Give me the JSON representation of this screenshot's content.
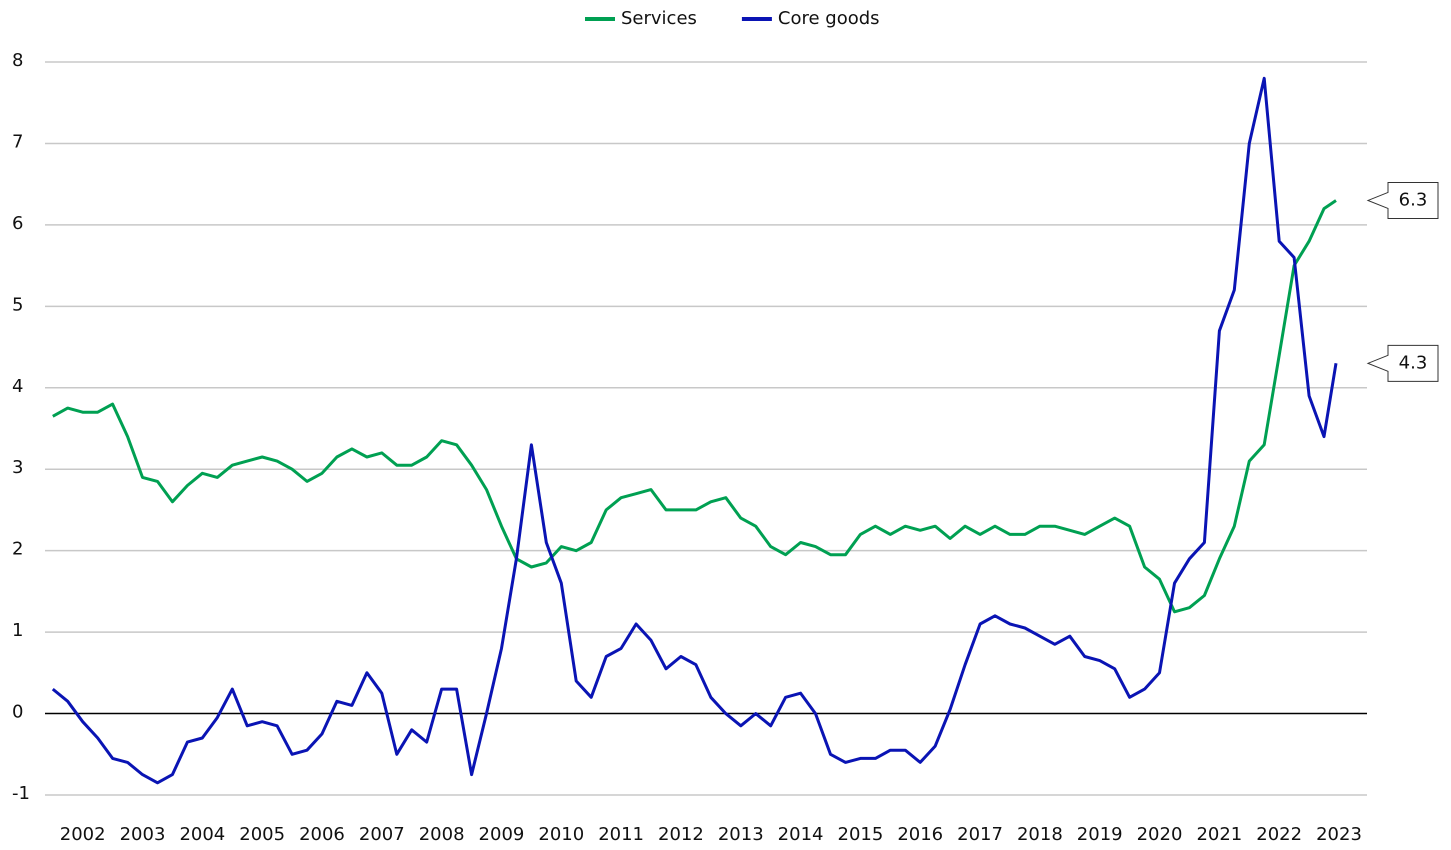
{
  "chart_data": {
    "type": "line",
    "x": [
      2001.5,
      2001.75,
      2002,
      2002.25,
      2002.5,
      2002.75,
      2003,
      2003.25,
      2003.5,
      2003.75,
      2004,
      2004.25,
      2004.5,
      2004.75,
      2005,
      2005.25,
      2005.5,
      2005.75,
      2006,
      2006.25,
      2006.5,
      2006.75,
      2007,
      2007.25,
      2007.5,
      2007.75,
      2008,
      2008.25,
      2008.5,
      2008.75,
      2009,
      2009.25,
      2009.5,
      2009.75,
      2010,
      2010.25,
      2010.5,
      2010.75,
      2011,
      2011.25,
      2011.5,
      2011.75,
      2012,
      2012.25,
      2012.5,
      2012.75,
      2013,
      2013.25,
      2013.5,
      2013.75,
      2014,
      2014.25,
      2014.5,
      2014.75,
      2015,
      2015.25,
      2015.5,
      2015.75,
      2016,
      2016.25,
      2016.5,
      2016.75,
      2017,
      2017.25,
      2017.5,
      2017.75,
      2018,
      2018.25,
      2018.5,
      2018.75,
      2019,
      2019.25,
      2019.5,
      2019.75,
      2020,
      2020.25,
      2020.5,
      2020.75,
      2021,
      2021.25,
      2021.5,
      2021.75,
      2022,
      2022.25,
      2022.5,
      2022.75,
      2022.95
    ],
    "series": [
      {
        "name": "Services",
        "color": "#00a052",
        "end_label": "6.3",
        "values": [
          3.65,
          3.75,
          3.7,
          3.7,
          3.8,
          3.4,
          2.9,
          2.85,
          2.6,
          2.8,
          2.95,
          2.9,
          3.05,
          3.1,
          3.15,
          3.1,
          3.0,
          2.85,
          2.95,
          3.15,
          3.25,
          3.15,
          3.2,
          3.05,
          3.05,
          3.15,
          3.35,
          3.3,
          3.05,
          2.75,
          2.3,
          1.9,
          1.8,
          1.85,
          2.05,
          2.0,
          2.1,
          2.5,
          2.65,
          2.7,
          2.75,
          2.5,
          2.5,
          2.5,
          2.6,
          2.65,
          2.4,
          2.3,
          2.05,
          1.95,
          2.1,
          2.05,
          1.95,
          1.95,
          2.2,
          2.3,
          2.2,
          2.3,
          2.25,
          2.3,
          2.15,
          2.3,
          2.2,
          2.3,
          2.2,
          2.2,
          2.3,
          2.3,
          2.25,
          2.2,
          2.3,
          2.4,
          2.3,
          1.8,
          1.65,
          1.25,
          1.3,
          1.45,
          1.9,
          2.3,
          3.1,
          3.3,
          4.4,
          5.5,
          5.8,
          6.2,
          6.3
        ]
      },
      {
        "name": "Core goods",
        "color": "#0a14b4",
        "end_label": "4.3",
        "values": [
          0.3,
          0.15,
          -0.1,
          -0.3,
          -0.55,
          -0.6,
          -0.75,
          -0.85,
          -0.75,
          -0.35,
          -0.3,
          -0.05,
          0.3,
          -0.15,
          -0.1,
          -0.15,
          -0.5,
          -0.45,
          -0.25,
          0.15,
          0.1,
          0.5,
          0.25,
          -0.5,
          -0.2,
          -0.35,
          0.3,
          0.3,
          -0.75,
          0.0,
          0.8,
          1.9,
          3.3,
          2.1,
          1.6,
          0.4,
          0.2,
          0.7,
          0.8,
          1.1,
          0.9,
          0.55,
          0.7,
          0.6,
          0.2,
          0.0,
          -0.15,
          0.0,
          -0.15,
          0.2,
          0.25,
          0.0,
          -0.5,
          -0.6,
          -0.55,
          -0.55,
          -0.45,
          -0.45,
          -0.6,
          -0.4,
          0.05,
          0.6,
          1.1,
          1.2,
          1.1,
          1.05,
          0.95,
          0.85,
          0.95,
          0.7,
          0.65,
          0.55,
          0.2,
          0.3,
          0.5,
          1.6,
          1.9,
          2.1,
          4.7,
          5.2,
          7.0,
          7.8,
          5.8,
          5.6,
          3.9,
          3.4,
          4.3
        ]
      }
    ],
    "xlim": [
      2001.42,
      2023.0
    ],
    "xticks": [
      2002,
      2003,
      2004,
      2005,
      2006,
      2007,
      2008,
      2009,
      2010,
      2011,
      2012,
      2013,
      2014,
      2015,
      2016,
      2017,
      2018,
      2019,
      2020,
      2021,
      2022,
      2023
    ],
    "ylim": [
      -1,
      8
    ],
    "yticks": [
      -1,
      0,
      1,
      2,
      3,
      4,
      5,
      6,
      7,
      8
    ],
    "grid": true,
    "legend": "top"
  }
}
